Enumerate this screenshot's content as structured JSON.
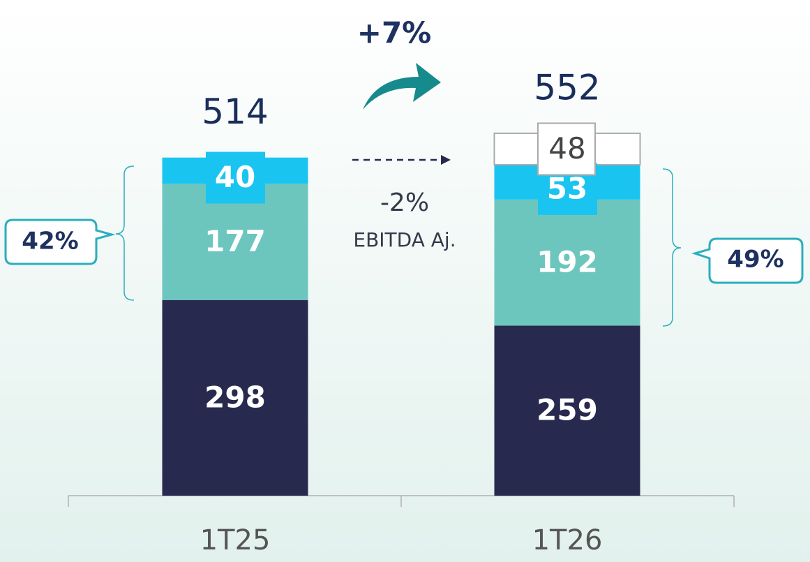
{
  "chart_data": {
    "type": "stacked_bar",
    "categories": [
      "1T25",
      "1T26"
    ],
    "series": [
      {
        "color": "#272a4e",
        "values": [
          298,
          259
        ]
      },
      {
        "color": "#6dc6bd",
        "values": [
          177,
          192
        ]
      },
      {
        "color": "#1ac4f0",
        "values": [
          40,
          53
        ]
      },
      {
        "color": "#ffffff",
        "values": [
          null,
          48
        ]
      }
    ],
    "totals": [
      514,
      552
    ],
    "ylim": [
      0,
      755
    ],
    "annotations": {
      "growth": "+7%",
      "ebitda_change": "-2%",
      "ebitda_label": "EBITDA Aj.",
      "share_left": "42%",
      "share_right": "49%"
    }
  }
}
